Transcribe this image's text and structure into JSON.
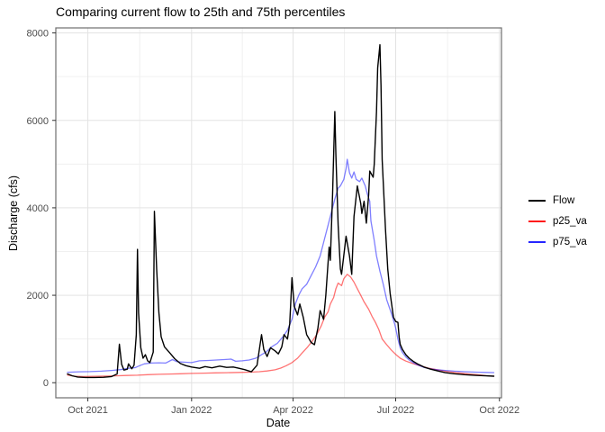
{
  "chart_data": {
    "type": "line",
    "title": "Comparing current flow to 25th and 75th percentiles",
    "xlabel": "Date",
    "ylabel": "Discharge (cfs)",
    "x_unit": "days since 2021-09-13",
    "x_domain_days": [
      -10.4,
      384.8
    ],
    "ylim": [
      -345,
      8115
    ],
    "grid": {
      "background": "#ffffff",
      "major_color": "#e3e3e3",
      "minor_color": "#f0f0f0",
      "panel_border": "#6e6e6e",
      "tick_color": "#333333",
      "tick_label_color": "#4d4d4d"
    },
    "legend_position": "right",
    "y_ticks": [
      {
        "value": 0,
        "label": "0"
      },
      {
        "value": 2000,
        "label": "2000"
      },
      {
        "value": 4000,
        "label": "4000"
      },
      {
        "value": 6000,
        "label": "6000"
      },
      {
        "value": 8000,
        "label": "8000"
      }
    ],
    "y_minor_values": [
      1000,
      3000,
      5000,
      7000
    ],
    "x_ticks": [
      {
        "day": 18,
        "label": "Oct 2021"
      },
      {
        "day": 110,
        "label": "Jan 2022"
      },
      {
        "day": 200,
        "label": "Apr 2022"
      },
      {
        "day": 291,
        "label": "Jul 2022"
      },
      {
        "day": 383,
        "label": "Oct 2022"
      }
    ],
    "x_minor_days": [
      64,
      155,
      245.5,
      337
    ],
    "series": [
      {
        "name": "Flow",
        "color": "#000000",
        "opacity": 1,
        "width": 1.4,
        "points": [
          [
            0,
            200
          ],
          [
            4,
            160
          ],
          [
            9,
            130
          ],
          [
            16,
            120
          ],
          [
            24,
            120
          ],
          [
            32,
            125
          ],
          [
            39,
            140
          ],
          [
            44,
            200
          ],
          [
            46,
            880
          ],
          [
            48,
            420
          ],
          [
            50,
            290
          ],
          [
            53,
            310
          ],
          [
            54,
            430
          ],
          [
            57,
            320
          ],
          [
            59,
            400
          ],
          [
            61,
            1100
          ],
          [
            62,
            3050
          ],
          [
            63,
            1600
          ],
          [
            65,
            800
          ],
          [
            67,
            560
          ],
          [
            69,
            640
          ],
          [
            71,
            500
          ],
          [
            73,
            460
          ],
          [
            76,
            700
          ],
          [
            77,
            3920
          ],
          [
            79,
            2600
          ],
          [
            81,
            1600
          ],
          [
            83,
            1050
          ],
          [
            86,
            820
          ],
          [
            90,
            700
          ],
          [
            95,
            550
          ],
          [
            100,
            440
          ],
          [
            105,
            390
          ],
          [
            110,
            360
          ],
          [
            117,
            330
          ],
          [
            122,
            370
          ],
          [
            128,
            340
          ],
          [
            135,
            380
          ],
          [
            141,
            350
          ],
          [
            147,
            360
          ],
          [
            152,
            330
          ],
          [
            157,
            300
          ],
          [
            163,
            250
          ],
          [
            168,
            400
          ],
          [
            172,
            1100
          ],
          [
            174,
            760
          ],
          [
            177,
            600
          ],
          [
            180,
            800
          ],
          [
            184,
            730
          ],
          [
            187,
            660
          ],
          [
            190,
            820
          ],
          [
            192,
            1100
          ],
          [
            195,
            1000
          ],
          [
            197,
            1350
          ],
          [
            199,
            2400
          ],
          [
            201,
            1750
          ],
          [
            204,
            1550
          ],
          [
            206,
            1800
          ],
          [
            209,
            1500
          ],
          [
            212,
            1100
          ],
          [
            216,
            920
          ],
          [
            219,
            870
          ],
          [
            222,
            1250
          ],
          [
            224,
            1650
          ],
          [
            227,
            1450
          ],
          [
            229,
            2000
          ],
          [
            232,
            3100
          ],
          [
            233,
            2800
          ],
          [
            235,
            4300
          ],
          [
            237,
            6200
          ],
          [
            238,
            5200
          ],
          [
            240,
            3600
          ],
          [
            242,
            2600
          ],
          [
            243,
            2480
          ],
          [
            247,
            3350
          ],
          [
            250,
            2900
          ],
          [
            252,
            2480
          ],
          [
            254,
            3800
          ],
          [
            257,
            4500
          ],
          [
            260,
            4100
          ],
          [
            261,
            3870
          ],
          [
            263,
            4150
          ],
          [
            265,
            3650
          ],
          [
            267,
            4300
          ],
          [
            268,
            4840
          ],
          [
            271,
            4700
          ],
          [
            272,
            5000
          ],
          [
            274,
            6200
          ],
          [
            275,
            7200
          ],
          [
            277,
            7730
          ],
          [
            278,
            6800
          ],
          [
            279,
            5100
          ],
          [
            282,
            3500
          ],
          [
            284,
            2600
          ],
          [
            286,
            2050
          ],
          [
            289,
            1500
          ],
          [
            291,
            1400
          ],
          [
            293,
            1380
          ],
          [
            294,
            1050
          ],
          [
            295,
            880
          ],
          [
            297,
            760
          ],
          [
            300,
            640
          ],
          [
            303,
            560
          ],
          [
            307,
            480
          ],
          [
            311,
            420
          ],
          [
            316,
            360
          ],
          [
            322,
            310
          ],
          [
            328,
            270
          ],
          [
            335,
            230
          ],
          [
            343,
            205
          ],
          [
            352,
            185
          ],
          [
            362,
            168
          ],
          [
            371,
            158
          ],
          [
            378,
            150
          ]
        ]
      },
      {
        "name": "p25_va",
        "color": "#ff0000",
        "opacity": 0.55,
        "width": 1.3,
        "points": [
          [
            0,
            175
          ],
          [
            6,
            150
          ],
          [
            14,
            140
          ],
          [
            23,
            145
          ],
          [
            33,
            152
          ],
          [
            42,
            158
          ],
          [
            52,
            165
          ],
          [
            62,
            172
          ],
          [
            71,
            185
          ],
          [
            81,
            192
          ],
          [
            90,
            198
          ],
          [
            100,
            205
          ],
          [
            110,
            212
          ],
          [
            121,
            220
          ],
          [
            131,
            226
          ],
          [
            141,
            230
          ],
          [
            152,
            235
          ],
          [
            162,
            242
          ],
          [
            170,
            252
          ],
          [
            177,
            268
          ],
          [
            184,
            295
          ],
          [
            189,
            335
          ],
          [
            194,
            390
          ],
          [
            199,
            460
          ],
          [
            204,
            560
          ],
          [
            208,
            680
          ],
          [
            213,
            820
          ],
          [
            217,
            950
          ],
          [
            221,
            1100
          ],
          [
            225,
            1300
          ],
          [
            228,
            1500
          ],
          [
            231,
            1620
          ],
          [
            233,
            1800
          ],
          [
            236,
            1950
          ],
          [
            238,
            2150
          ],
          [
            240,
            2280
          ],
          [
            243,
            2220
          ],
          [
            245,
            2380
          ],
          [
            248,
            2480
          ],
          [
            251,
            2420
          ],
          [
            254,
            2300
          ],
          [
            257,
            2150
          ],
          [
            260,
            2000
          ],
          [
            263,
            1850
          ],
          [
            267,
            1680
          ],
          [
            270,
            1520
          ],
          [
            273,
            1380
          ],
          [
            276,
            1220
          ],
          [
            279,
            1000
          ],
          [
            283,
            870
          ],
          [
            287,
            750
          ],
          [
            291,
            650
          ],
          [
            295,
            560
          ],
          [
            300,
            495
          ],
          [
            306,
            440
          ],
          [
            313,
            385
          ],
          [
            320,
            335
          ],
          [
            328,
            295
          ],
          [
            336,
            260
          ],
          [
            345,
            230
          ],
          [
            354,
            205
          ],
          [
            363,
            185
          ],
          [
            371,
            162
          ],
          [
            378,
            148
          ]
        ]
      },
      {
        "name": "p75_va",
        "color": "#0000ff",
        "opacity": 0.5,
        "width": 1.3,
        "points": [
          [
            0,
            240
          ],
          [
            10,
            250
          ],
          [
            20,
            255
          ],
          [
            30,
            265
          ],
          [
            39,
            280
          ],
          [
            47,
            300
          ],
          [
            54,
            330
          ],
          [
            60,
            345
          ],
          [
            63,
            380
          ],
          [
            68,
            430
          ],
          [
            74,
            450
          ],
          [
            81,
            455
          ],
          [
            87,
            450
          ],
          [
            93,
            530
          ],
          [
            97,
            480
          ],
          [
            103,
            470
          ],
          [
            110,
            460
          ],
          [
            117,
            500
          ],
          [
            125,
            510
          ],
          [
            132,
            520
          ],
          [
            139,
            530
          ],
          [
            145,
            540
          ],
          [
            149,
            490
          ],
          [
            155,
            500
          ],
          [
            161,
            520
          ],
          [
            167,
            560
          ],
          [
            172,
            640
          ],
          [
            176,
            700
          ],
          [
            181,
            820
          ],
          [
            186,
            900
          ],
          [
            191,
            1050
          ],
          [
            195,
            1200
          ],
          [
            199,
            1450
          ],
          [
            202,
            1800
          ],
          [
            205,
            2000
          ],
          [
            208,
            2150
          ],
          [
            212,
            2250
          ],
          [
            216,
            2450
          ],
          [
            220,
            2650
          ],
          [
            224,
            2900
          ],
          [
            228,
            3300
          ],
          [
            231,
            3600
          ],
          [
            234,
            3900
          ],
          [
            237,
            4200
          ],
          [
            240,
            4450
          ],
          [
            242,
            4500
          ],
          [
            245,
            4650
          ],
          [
            247,
            4900
          ],
          [
            248,
            5110
          ],
          [
            250,
            4800
          ],
          [
            252,
            4680
          ],
          [
            254,
            4820
          ],
          [
            256,
            4650
          ],
          [
            259,
            4600
          ],
          [
            261,
            4680
          ],
          [
            264,
            4500
          ],
          [
            266,
            4300
          ],
          [
            268,
            4150
          ],
          [
            269,
            3700
          ],
          [
            272,
            3250
          ],
          [
            274,
            2900
          ],
          [
            277,
            2550
          ],
          [
            280,
            2250
          ],
          [
            283,
            1900
          ],
          [
            287,
            1600
          ],
          [
            290,
            1350
          ],
          [
            291,
            1250
          ],
          [
            293,
            1000
          ],
          [
            295,
            800
          ],
          [
            297,
            690
          ],
          [
            300,
            590
          ],
          [
            303,
            520
          ],
          [
            307,
            450
          ],
          [
            311,
            400
          ],
          [
            316,
            350
          ],
          [
            322,
            315
          ],
          [
            328,
            295
          ],
          [
            335,
            280
          ],
          [
            343,
            265
          ],
          [
            352,
            252
          ],
          [
            362,
            242
          ],
          [
            371,
            236
          ],
          [
            378,
            232
          ]
        ]
      }
    ]
  }
}
